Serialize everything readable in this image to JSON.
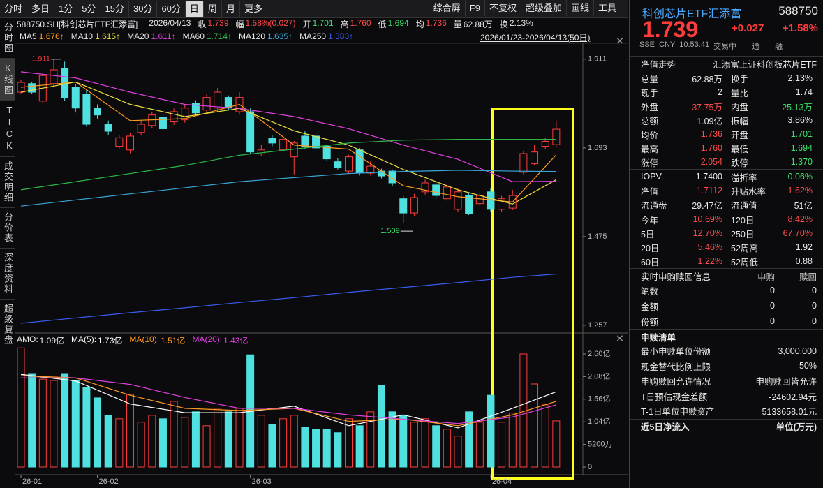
{
  "toolbar": {
    "tabs": [
      {
        "label": "分时",
        "active": false
      },
      {
        "label": "多日",
        "active": false
      },
      {
        "label": "1分",
        "active": false
      },
      {
        "label": "5分",
        "active": false
      },
      {
        "label": "15分",
        "active": false
      },
      {
        "label": "30分",
        "active": false
      },
      {
        "label": "60分",
        "active": false
      },
      {
        "label": "日",
        "active": true
      },
      {
        "label": "周",
        "active": false
      },
      {
        "label": "月",
        "active": false
      },
      {
        "label": "更多",
        "active": false
      }
    ],
    "tools": [
      "综合屏",
      "F9",
      "不复权",
      "超级叠加",
      "画线",
      "工具"
    ]
  },
  "side_tabs": [
    "分时图",
    "K线图",
    "TICK",
    "成交明细",
    "分价表",
    "深度资料",
    "超级复盘"
  ],
  "chart_data": {
    "type": "candlestick",
    "instrument": "588750.SH[科创芯片ETF汇添富]",
    "date": "2026/04/13",
    "fields": [
      {
        "label": "收",
        "value": "1.739",
        "color": "#ff4b4b"
      },
      {
        "label": "幅",
        "value": "1.58%(0.027)",
        "color": "#ff4b4b"
      },
      {
        "label": "开",
        "value": "1.701",
        "color": "#3ce06a"
      },
      {
        "label": "高",
        "value": "1.760",
        "color": "#ff4b4b"
      },
      {
        "label": "低",
        "value": "1.694",
        "color": "#3ce06a"
      },
      {
        "label": "均",
        "value": "1.736",
        "color": "#ff4b4b"
      },
      {
        "label": "量",
        "value": "62.88万",
        "color": "#e8e8e8"
      },
      {
        "label": "换",
        "value": "2.13%",
        "color": "#e8e8e8"
      }
    ],
    "range": "2026/01/23-2026/04/13(50日)",
    "ylim": [
      1.238,
      1.933
    ],
    "yticks": [
      1.911,
      1.693,
      1.475,
      1.257
    ],
    "max_label": "1.911",
    "min_label": "1.509",
    "up_color": "#ff3c3c",
    "down_color": "#4fe0e0",
    "candles": {
      "open": [
        1.83,
        1.851,
        1.808,
        1.851,
        1.889,
        1.842,
        1.825,
        1.791,
        1.751,
        1.697,
        1.688,
        1.731,
        1.748,
        1.769,
        1.757,
        1.762,
        1.803,
        1.786,
        1.791,
        1.817,
        1.782,
        1.782,
        1.678,
        1.717,
        1.688,
        1.671,
        1.722,
        1.722,
        1.697,
        1.659,
        1.636,
        1.688,
        1.631,
        1.636,
        1.636,
        1.568,
        1.533,
        1.585,
        1.602,
        1.568,
        1.542,
        1.576,
        1.556,
        1.585,
        1.542,
        1.545,
        1.633,
        1.654,
        1.697,
        1.701
      ],
      "high": [
        1.86,
        1.856,
        1.878,
        1.911,
        1.905,
        1.85,
        1.835,
        1.8,
        1.76,
        1.725,
        1.73,
        1.76,
        1.782,
        1.775,
        1.79,
        1.8,
        1.81,
        1.825,
        1.84,
        1.822,
        1.83,
        1.79,
        1.7,
        1.725,
        1.72,
        1.71,
        1.735,
        1.73,
        1.7,
        1.668,
        1.676,
        1.693,
        1.66,
        1.642,
        1.64,
        1.575,
        1.58,
        1.615,
        1.61,
        1.605,
        1.593,
        1.582,
        1.585,
        1.595,
        1.575,
        1.59,
        1.685,
        1.7,
        1.718,
        1.76
      ],
      "low": [
        1.826,
        1.826,
        1.8,
        1.845,
        1.808,
        1.78,
        1.745,
        1.765,
        1.725,
        1.69,
        1.68,
        1.725,
        1.742,
        1.735,
        1.75,
        1.755,
        1.772,
        1.78,
        1.782,
        1.785,
        1.775,
        1.678,
        1.672,
        1.697,
        1.68,
        1.628,
        1.69,
        1.685,
        1.66,
        1.64,
        1.63,
        1.625,
        1.625,
        1.618,
        1.6,
        1.509,
        1.525,
        1.578,
        1.568,
        1.562,
        1.535,
        1.528,
        1.55,
        1.535,
        1.536,
        1.54,
        1.628,
        1.65,
        1.69,
        1.694
      ],
      "close": [
        1.854,
        1.83,
        1.871,
        1.885,
        1.817,
        1.791,
        1.751,
        1.774,
        1.734,
        1.718,
        1.722,
        1.751,
        1.774,
        1.74,
        1.782,
        1.791,
        1.779,
        1.817,
        1.83,
        1.791,
        1.817,
        1.683,
        1.688,
        1.705,
        1.714,
        1.705,
        1.697,
        1.693,
        1.666,
        1.645,
        1.671,
        1.631,
        1.648,
        1.624,
        1.607,
        1.533,
        1.571,
        1.607,
        1.576,
        1.597,
        1.585,
        1.532,
        1.576,
        1.542,
        1.568,
        1.576,
        1.679,
        1.683,
        1.709,
        1.739
      ]
    },
    "ma_lines": [
      {
        "name": "MA5",
        "value_label": "1.676↑",
        "color": "#ff9a1e",
        "x": [
          0,
          5,
          10,
          15,
          20,
          25,
          30,
          35,
          40,
          45,
          49
        ],
        "values": [
          1.842,
          1.855,
          1.76,
          1.765,
          1.8,
          1.7,
          1.69,
          1.6,
          1.573,
          1.56,
          1.676
        ]
      },
      {
        "name": "MA10",
        "value_label": "1.615↑",
        "color": "#f0e040",
        "x": [
          0,
          5,
          10,
          15,
          20,
          25,
          30,
          35,
          40,
          45,
          49
        ],
        "values": [
          1.83,
          1.855,
          1.8,
          1.77,
          1.79,
          1.735,
          1.7,
          1.64,
          1.59,
          1.555,
          1.615
        ]
      },
      {
        "name": "MA20",
        "value_label": "1.611↑",
        "color": "#e040e0",
        "x": [
          0,
          5,
          10,
          15,
          20,
          25,
          30,
          35,
          40,
          45,
          49
        ],
        "values": [
          1.88,
          1.865,
          1.83,
          1.8,
          1.79,
          1.77,
          1.74,
          1.7,
          1.665,
          1.61,
          1.611
        ]
      },
      {
        "name": "MA60",
        "value_label": "1.714↑",
        "color": "#2eb84a",
        "x": [
          0,
          5,
          10,
          15,
          20,
          25,
          30,
          35,
          40,
          45,
          49
        ],
        "values": [
          1.59,
          1.61,
          1.63,
          1.65,
          1.675,
          1.69,
          1.705,
          1.712,
          1.714,
          1.714,
          1.714
        ]
      },
      {
        "name": "MA120",
        "value_label": "1.635↑",
        "color": "#3aa6d8",
        "x": [
          0,
          5,
          10,
          15,
          20,
          25,
          30,
          35,
          40,
          45,
          49
        ],
        "values": [
          1.55,
          1.565,
          1.58,
          1.595,
          1.61,
          1.62,
          1.63,
          1.635,
          1.638,
          1.636,
          1.635
        ]
      },
      {
        "name": "MA250",
        "value_label": "1.383↑",
        "color": "#3a5cf0",
        "x": [
          0,
          5,
          10,
          15,
          20,
          25,
          30,
          35,
          40,
          45,
          49
        ],
        "values": [
          1.262,
          1.275,
          1.288,
          1.3,
          1.313,
          1.325,
          1.338,
          1.35,
          1.362,
          1.375,
          1.383
        ]
      }
    ],
    "xticks": [
      {
        "value": 0,
        "label": "26-01"
      },
      {
        "value": 7,
        "label": "26-02"
      },
      {
        "value": 21,
        "label": "26-03"
      },
      {
        "value": 43,
        "label": "26-04"
      }
    ],
    "volume": {
      "amo": {
        "name": "AMO:",
        "value_label": "1.09亿"
      },
      "ylim": [
        0,
        2.76
      ],
      "yticks": [
        {
          "value": 2.6,
          "label": "2.60亿"
        },
        {
          "value": 2.08,
          "label": "2.08亿"
        },
        {
          "value": 1.56,
          "label": "1.56亿"
        },
        {
          "value": 1.04,
          "label": "1.04亿"
        },
        {
          "value": 0.52,
          "label": "5200万"
        },
        0
      ],
      "values": [
        2.74,
        2.15,
        2.02,
        1.99,
        2.15,
        1.99,
        1.83,
        1.59,
        1.19,
        1.11,
        1.67,
        1.03,
        1.19,
        1.11,
        1.51,
        1.14,
        1.27,
        0.95,
        1.35,
        1.27,
        1.35,
        2.58,
        1.19,
        0.98,
        1.11,
        1.19,
        0.91,
        0.87,
        0.87,
        0.79,
        1.11,
        0.95,
        1.27,
        1.88,
        1.27,
        1.19,
        1.03,
        1.11,
        0.95,
        0.87,
        0.71,
        1.27,
        1.03,
        1.65,
        1.03,
        1.24,
        2.6,
        1.91,
        1.43,
        1.06
      ],
      "ma_lines": [
        {
          "name": "MA(5):",
          "value_label": "1.73亿",
          "color": "#ffffff",
          "x": [
            0,
            5,
            10,
            15,
            20,
            25,
            30,
            35,
            40,
            45,
            49
          ],
          "values": [
            2.13,
            1.98,
            1.45,
            1.25,
            1.25,
            1.4,
            0.95,
            1.2,
            0.9,
            1.35,
            1.73
          ]
        },
        {
          "name": "MA(10):",
          "value_label": "1.51亿",
          "color": "#ff9a1e",
          "x": [
            0,
            5,
            10,
            15,
            20,
            25,
            30,
            35,
            40,
            45,
            49
          ],
          "values": [
            2.1,
            2.05,
            1.65,
            1.35,
            1.3,
            1.35,
            1.05,
            1.1,
            0.95,
            1.2,
            1.51
          ]
        },
        {
          "name": "MA(20):",
          "value_label": "1.43亿",
          "color": "#e040e0",
          "x": [
            0,
            5,
            10,
            15,
            20,
            25,
            30,
            35,
            40,
            45,
            49
          ],
          "values": [
            2.05,
            2.05,
            1.9,
            1.6,
            1.35,
            1.35,
            1.2,
            1.1,
            1.0,
            1.15,
            1.43
          ]
        }
      ]
    }
  },
  "quote": {
    "name": "科创芯片ETF汇添富",
    "code": "588750",
    "price": "1.739",
    "change": "+0.027",
    "pct": "+1.58%",
    "info": [
      "SSE",
      "CNY",
      "10:53:41",
      "交易中",
      "通",
      "融"
    ],
    "nav_title": "净值走势",
    "fund_name": "汇添富上证科创板芯片ETF",
    "stats": [
      [
        {
          "l1": "总量",
          "v1": "62.88万",
          "c1": "#e8e8e8",
          "l2": "换手",
          "v2": "2.13%",
          "c2": "#e8e8e8"
        },
        {
          "l1": "现手",
          "v1": "2",
          "c1": "#e8e8e8",
          "l2": "量比",
          "v2": "1.74",
          "c2": "#e8e8e8"
        },
        {
          "l1": "外盘",
          "v1": "37.75万",
          "c1": "#ff4b4b",
          "l2": "内盘",
          "v2": "25.13万",
          "c2": "#3ce06a"
        },
        {
          "l1": "总额",
          "v1": "1.09亿",
          "c1": "#e8e8e8",
          "l2": "振幅",
          "v2": "3.86%",
          "c2": "#e8e8e8"
        },
        {
          "l1": "均价",
          "v1": "1.736",
          "c1": "#ff4b4b",
          "l2": "开盘",
          "v2": "1.701",
          "c2": "#3ce06a"
        },
        {
          "l1": "最高",
          "v1": "1.760",
          "c1": "#ff4b4b",
          "l2": "最低",
          "v2": "1.694",
          "c2": "#3ce06a"
        },
        {
          "l1": "涨停",
          "v1": "2.054",
          "c1": "#ff4b4b",
          "l2": "跌停",
          "v2": "1.370",
          "c2": "#3ce06a"
        }
      ],
      [
        {
          "l1": "IOPV",
          "v1": "1.7400",
          "c1": "#e8e8e8",
          "l2": "溢折率",
          "v2": "-0.06%",
          "c2": "#3ce06a"
        },
        {
          "l1": "净值",
          "v1": "1.7112",
          "c1": "#ff4b4b",
          "l2": "升贴水率",
          "v2": "1.62%",
          "c2": "#ff4b4b"
        },
        {
          "l1": "流通盘",
          "v1": "29.47亿",
          "c1": "#e8e8e8",
          "l2": "流通值",
          "v2": "51亿",
          "c2": "#e8e8e8"
        }
      ],
      [
        {
          "l1": "今年",
          "v1": "10.69%",
          "c1": "#ff4b4b",
          "l2": "120日",
          "v2": "8.42%",
          "c2": "#ff4b4b"
        },
        {
          "l1": "5日",
          "v1": "12.70%",
          "c1": "#ff4b4b",
          "l2": "250日",
          "v2": "67.70%",
          "c2": "#ff4b4b"
        },
        {
          "l1": "20日",
          "v1": "5.46%",
          "c1": "#ff4b4b",
          "l2": "52周高",
          "v2": "1.92",
          "c2": "#e8e8e8"
        },
        {
          "l1": "60日",
          "v1": "1.22%",
          "c1": "#ff4b4b",
          "l2": "52周低",
          "v2": "0.88",
          "c2": "#e8e8e8"
        }
      ]
    ],
    "creation": {
      "title": "实时申购赎回信息",
      "columns": [
        "申购",
        "赎回"
      ],
      "rows": [
        [
          "笔数",
          "0",
          "0"
        ],
        [
          "金额",
          "0",
          "0"
        ],
        [
          "份额",
          "0",
          "0"
        ]
      ]
    },
    "list": {
      "title": "申赎清单",
      "rows": [
        [
          "最小申赎单位份额",
          "3,000,000"
        ],
        [
          "现金替代比例上限",
          "50%"
        ],
        [
          "申购赎回允许情况",
          "申购赎回皆允许"
        ],
        [
          "T日预估现金差额",
          "-24602.94元"
        ],
        [
          "T-1日单位申赎资产",
          "5133658.01元"
        ]
      ]
    },
    "inflow": {
      "title": "近5日净流入",
      "unit": "单位(万元)"
    }
  }
}
